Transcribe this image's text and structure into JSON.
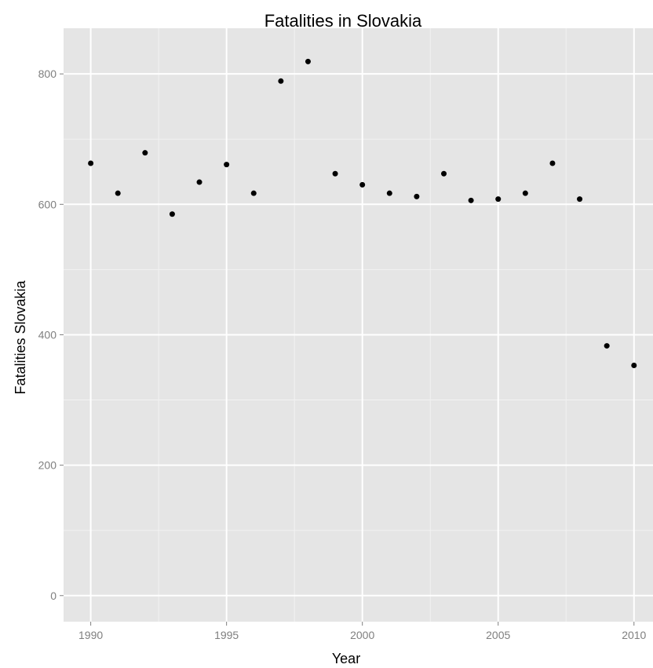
{
  "chart_data": {
    "type": "scatter",
    "title": "Fatalities in Slovakia",
    "xlabel": "Year",
    "ylabel": "Fatalities Slovakia",
    "x": [
      1990,
      1991,
      1992,
      1993,
      1994,
      1995,
      1996,
      1997,
      1998,
      1999,
      2000,
      2001,
      2002,
      2003,
      2004,
      2005,
      2006,
      2007,
      2008,
      2009,
      2010
    ],
    "y": [
      663,
      617,
      679,
      585,
      634,
      661,
      617,
      789,
      819,
      647,
      630,
      617,
      612,
      647,
      606,
      608,
      617,
      663,
      608,
      383,
      353
    ],
    "xlim": [
      1989,
      2010.7
    ],
    "ylim": [
      -40,
      870
    ],
    "x_ticks": [
      1990,
      1995,
      2000,
      2005,
      2010
    ],
    "y_ticks": [
      0,
      200,
      400,
      600,
      800
    ],
    "x_tick_labels": [
      "1990",
      "1995",
      "2000",
      "2005",
      "2010"
    ],
    "y_tick_labels": [
      "0",
      "200",
      "400",
      "600",
      "800"
    ],
    "grid": true,
    "panel_color": "#e5e5e5",
    "grid_color": "#ffffff",
    "point_color": "#000000",
    "tick_label_color": "#7f7f7f"
  }
}
